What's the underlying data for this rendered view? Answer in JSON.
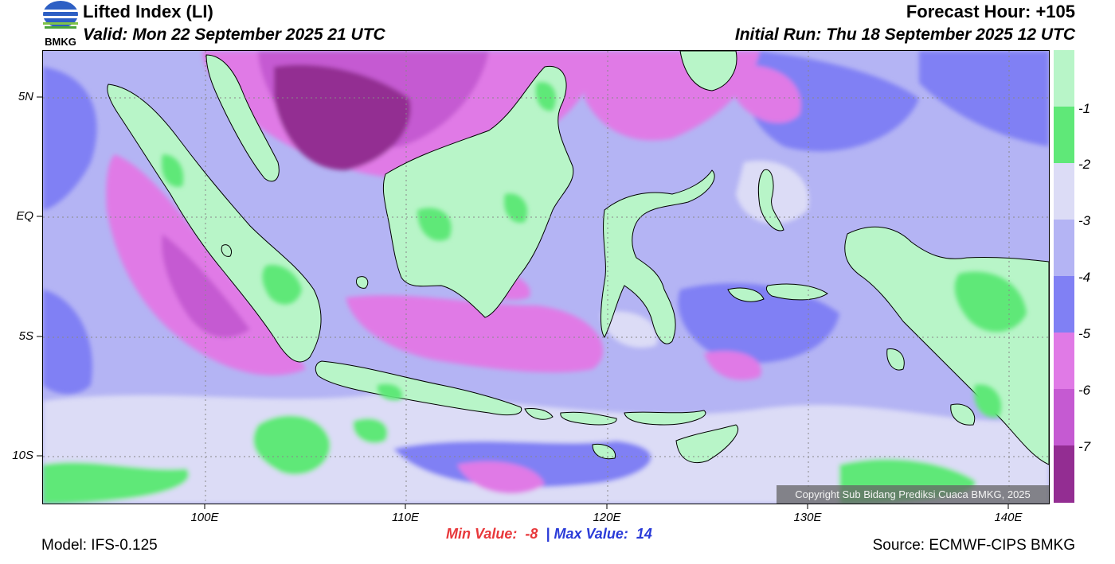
{
  "header": {
    "title": "Lifted Index (LI)",
    "valid": "Valid: Mon 22 September 2025 21 UTC",
    "forecast_hour": "Forecast Hour: +105",
    "initial_run": "Initial Run: Thu 18 September 2025 12 UTC",
    "logo_text": "BMKG"
  },
  "axes": {
    "lat_labels": [
      "5N",
      "EQ",
      "5S",
      "10S"
    ],
    "lon_labels": [
      "100E",
      "110E",
      "120E",
      "130E",
      "140E"
    ]
  },
  "colorbar": {
    "labels": [
      "-1",
      "-2",
      "-3",
      "-4",
      "-5",
      "-6",
      "-7"
    ],
    "colors": [
      "#b8f5c8",
      "#5fe878",
      "#dcdcf6",
      "#b4b4f4",
      "#8080f4",
      "#e07ae6",
      "#c55ad2",
      "#932d92"
    ]
  },
  "palette": {
    "ocean_base": "#b4b4f4",
    "land": "#b8f5c8",
    "land_wet": "#5fe878",
    "light": "#dcdcf6",
    "blue": "#8080f4",
    "magenta": "#e07ae6",
    "purple": "#c55ad2",
    "dark": "#932d92"
  },
  "stats": {
    "min_label": "Min Value:",
    "min_value": "-8",
    "separator": "|",
    "max_label": "Max Value:",
    "max_value": "14"
  },
  "footer": {
    "model": "Model: IFS-0.125",
    "source": "Source: ECMWF-CIPS BMKG",
    "copyright": "Copyright Sub Bidang Prediksi Cuaca BMKG, 2025"
  }
}
